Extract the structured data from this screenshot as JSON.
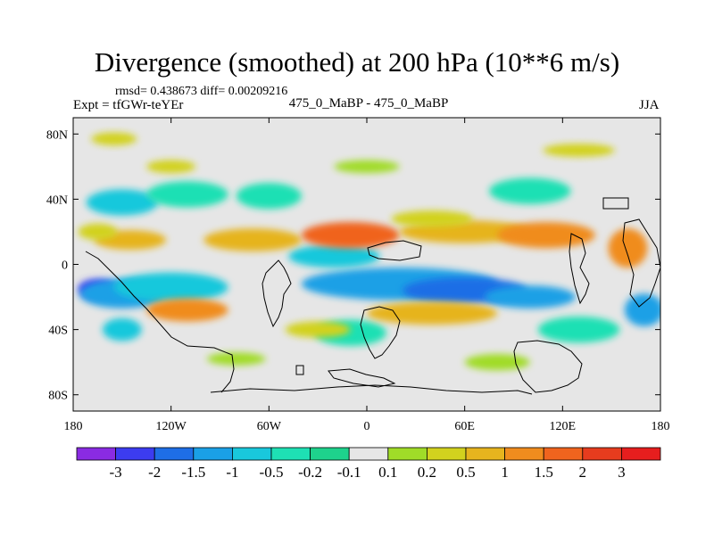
{
  "chart_data": {
    "type": "heatmap",
    "title": "Divergence (smoothed) at 200 hPa (10**6 m/s)",
    "stats_line": "rmsd= 0.438673  diff= 0.00209216",
    "experiment_label": "Expt = tfGWr-teYEr",
    "subtitle": "475_0_MaBP - 475_0_MaBP",
    "season": "JJA",
    "x_range": [
      -180,
      180
    ],
    "y_range": [
      -90,
      90
    ],
    "x_ticks": [
      {
        "value": -180,
        "label": "180"
      },
      {
        "value": -120,
        "label": "120W"
      },
      {
        "value": -60,
        "label": "60W"
      },
      {
        "value": 0,
        "label": "0"
      },
      {
        "value": 60,
        "label": "60E"
      },
      {
        "value": 120,
        "label": "120E"
      },
      {
        "value": 180,
        "label": "180"
      }
    ],
    "y_ticks": [
      {
        "value": 80,
        "label": "80N"
      },
      {
        "value": 40,
        "label": "40N"
      },
      {
        "value": 0,
        "label": "0"
      },
      {
        "value": -40,
        "label": "40S"
      },
      {
        "value": -80,
        "label": "80S"
      }
    ],
    "colorbar": {
      "levels": [
        "-3",
        "-2",
        "-1.5",
        "-1",
        "-0.5",
        "-0.2",
        "-0.1",
        "0.1",
        "0.2",
        "0.5",
        "1",
        "1.5",
        "2",
        "3"
      ],
      "colors": [
        "#8a2be2",
        "#3c3cf0",
        "#1e6ee6",
        "#1aa0e6",
        "#19c8dc",
        "#1ee0b4",
        "#1ed28c",
        "#e6e6e6",
        "#a0dc28",
        "#d2d21e",
        "#e6b41e",
        "#f08c1e",
        "#f0641e",
        "#e63c1e",
        "#e61e1e"
      ]
    },
    "fields": [
      {
        "lon": -165,
        "lat": -15,
        "rx": 12,
        "ry": 6,
        "level": 1
      },
      {
        "lon": -150,
        "lat": -18,
        "rx": 26,
        "ry": 9,
        "level": 3
      },
      {
        "lon": -120,
        "lat": -14,
        "rx": 35,
        "ry": 9,
        "level": 4
      },
      {
        "lon": 20,
        "lat": -12,
        "rx": 60,
        "ry": 10,
        "level": 3
      },
      {
        "lon": 60,
        "lat": -16,
        "rx": 38,
        "ry": 8,
        "level": 2
      },
      {
        "lon": 100,
        "lat": -20,
        "rx": 28,
        "ry": 7,
        "level": 3
      },
      {
        "lon": -20,
        "lat": 5,
        "rx": 28,
        "ry": 7,
        "level": 4
      },
      {
        "lon": 170,
        "lat": -28,
        "rx": 12,
        "ry": 10,
        "level": 3
      },
      {
        "lon": -150,
        "lat": 38,
        "rx": 22,
        "ry": 8,
        "level": 4
      },
      {
        "lon": -110,
        "lat": 43,
        "rx": 25,
        "ry": 8,
        "level": 5
      },
      {
        "lon": -60,
        "lat": 42,
        "rx": 20,
        "ry": 8,
        "level": 5
      },
      {
        "lon": 100,
        "lat": 45,
        "rx": 25,
        "ry": 8,
        "level": 5
      },
      {
        "lon": -150,
        "lat": -40,
        "rx": 12,
        "ry": 7,
        "level": 4
      },
      {
        "lon": 130,
        "lat": -40,
        "rx": 25,
        "ry": 8,
        "level": 5
      },
      {
        "lon": -10,
        "lat": -42,
        "rx": 22,
        "ry": 8,
        "level": 5
      },
      {
        "lon": -145,
        "lat": 15,
        "rx": 22,
        "ry": 6,
        "level": 10
      },
      {
        "lon": -70,
        "lat": 15,
        "rx": 30,
        "ry": 7,
        "level": 10
      },
      {
        "lon": -10,
        "lat": 18,
        "rx": 30,
        "ry": 8,
        "level": 12
      },
      {
        "lon": 60,
        "lat": 20,
        "rx": 40,
        "ry": 7,
        "level": 10
      },
      {
        "lon": 110,
        "lat": 18,
        "rx": 30,
        "ry": 8,
        "level": 11
      },
      {
        "lon": -110,
        "lat": -28,
        "rx": 25,
        "ry": 7,
        "level": 11
      },
      {
        "lon": 40,
        "lat": -30,
        "rx": 40,
        "ry": 7,
        "level": 10
      },
      {
        "lon": 160,
        "lat": 10,
        "rx": 12,
        "ry": 12,
        "level": 11
      },
      {
        "lon": -165,
        "lat": 20,
        "rx": 12,
        "ry": 5,
        "level": 9
      },
      {
        "lon": 40,
        "lat": 28,
        "rx": 25,
        "ry": 5,
        "level": 9
      },
      {
        "lon": -30,
        "lat": -40,
        "rx": 20,
        "ry": 5,
        "level": 9
      },
      {
        "lon": -80,
        "lat": -58,
        "rx": 18,
        "ry": 4,
        "level": 8
      },
      {
        "lon": 80,
        "lat": -60,
        "rx": 20,
        "ry": 5,
        "level": 8
      },
      {
        "lon": 0,
        "lat": 60,
        "rx": 20,
        "ry": 4,
        "level": 8
      },
      {
        "lon": -120,
        "lat": 60,
        "rx": 15,
        "ry": 4,
        "level": 9
      },
      {
        "lon": 130,
        "lat": 70,
        "rx": 22,
        "ry": 4,
        "level": 9
      },
      {
        "lon": -155,
        "lat": 77,
        "rx": 14,
        "ry": 4,
        "level": 9
      }
    ]
  }
}
